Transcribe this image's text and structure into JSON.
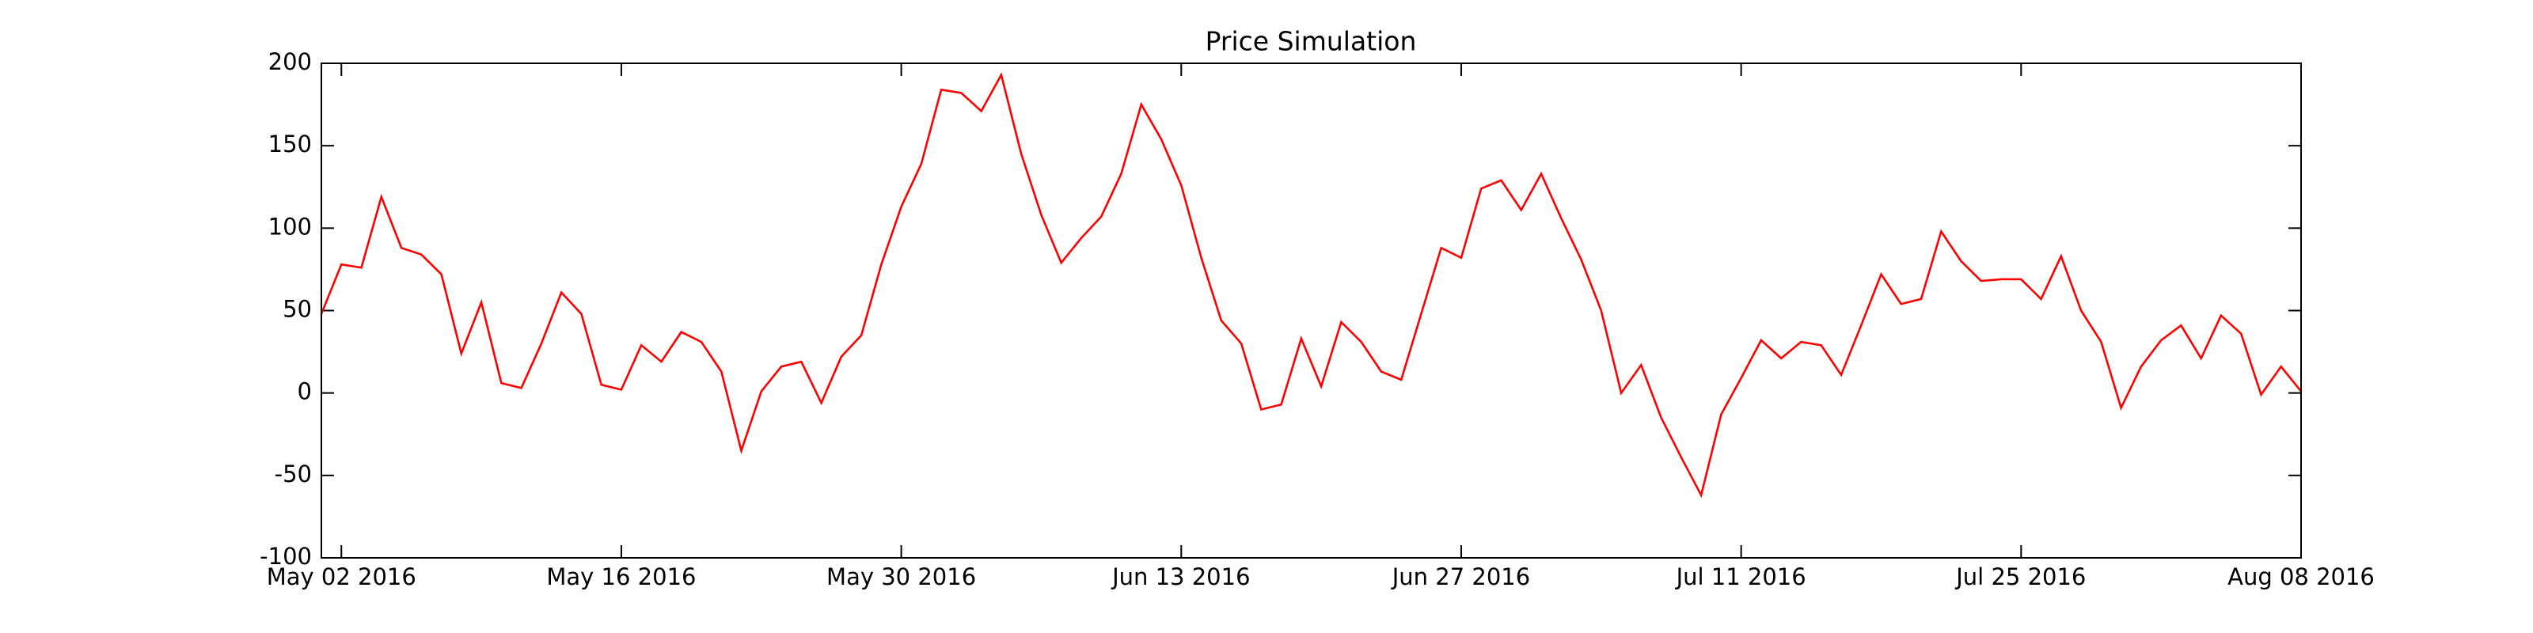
{
  "chart_data": {
    "type": "line",
    "title": "Price Simulation",
    "x": [
      "2016-05-01",
      "2016-05-02",
      "2016-05-03",
      "2016-05-04",
      "2016-05-05",
      "2016-05-06",
      "2016-05-07",
      "2016-05-08",
      "2016-05-09",
      "2016-05-10",
      "2016-05-11",
      "2016-05-12",
      "2016-05-13",
      "2016-05-14",
      "2016-05-15",
      "2016-05-16",
      "2016-05-17",
      "2016-05-18",
      "2016-05-19",
      "2016-05-20",
      "2016-05-21",
      "2016-05-22",
      "2016-05-23",
      "2016-05-24",
      "2016-05-25",
      "2016-05-26",
      "2016-05-27",
      "2016-05-28",
      "2016-05-29",
      "2016-05-30",
      "2016-05-31",
      "2016-06-01",
      "2016-06-02",
      "2016-06-03",
      "2016-06-04",
      "2016-06-05",
      "2016-06-06",
      "2016-06-07",
      "2016-06-08",
      "2016-06-09",
      "2016-06-10",
      "2016-06-11",
      "2016-06-12",
      "2016-06-13",
      "2016-06-14",
      "2016-06-15",
      "2016-06-16",
      "2016-06-17",
      "2016-06-18",
      "2016-06-19",
      "2016-06-20",
      "2016-06-21",
      "2016-06-22",
      "2016-06-23",
      "2016-06-24",
      "2016-06-25",
      "2016-06-26",
      "2016-06-27",
      "2016-06-28",
      "2016-06-29",
      "2016-06-30",
      "2016-07-01",
      "2016-07-02",
      "2016-07-03",
      "2016-07-04",
      "2016-07-05",
      "2016-07-06",
      "2016-07-07",
      "2016-07-08",
      "2016-07-09",
      "2016-07-10",
      "2016-07-11",
      "2016-07-12",
      "2016-07-13",
      "2016-07-14",
      "2016-07-15",
      "2016-07-16",
      "2016-07-17",
      "2016-07-18",
      "2016-07-19",
      "2016-07-20",
      "2016-07-21",
      "2016-07-22",
      "2016-07-23",
      "2016-07-24",
      "2016-07-25",
      "2016-07-26",
      "2016-07-27",
      "2016-07-28",
      "2016-07-29",
      "2016-07-30",
      "2016-07-31",
      "2016-08-01",
      "2016-08-02",
      "2016-08-03",
      "2016-08-04",
      "2016-08-05",
      "2016-08-06",
      "2016-08-07",
      "2016-08-08"
    ],
    "series": [
      {
        "color": "#ff0000",
        "values": [
          48,
          78,
          76,
          119,
          88,
          84,
          72,
          24,
          55,
          6,
          3,
          30,
          61,
          48,
          5,
          2,
          29,
          19,
          37,
          31,
          13,
          -35,
          1,
          16,
          19,
          -6,
          22,
          35,
          78,
          113,
          139,
          184,
          182,
          171,
          193,
          145,
          108,
          79,
          94,
          107,
          133,
          175,
          154,
          126,
          82,
          44,
          30,
          -10,
          -7,
          33,
          4,
          43,
          31,
          13,
          8,
          48,
          88,
          82,
          124,
          129,
          111,
          133,
          106,
          81,
          50,
          0,
          17,
          -15,
          -39,
          -62,
          -13,
          9,
          32,
          21,
          31,
          29,
          11,
          41,
          72,
          54,
          57,
          98,
          80,
          68,
          69,
          69,
          57,
          83,
          50,
          31,
          -9,
          16,
          32,
          41,
          21,
          47,
          36,
          -1,
          16,
          1
        ]
      }
    ],
    "xlim": [
      "2016-05-01",
      "2016-08-08"
    ],
    "xticks": [
      {
        "value": "2016-05-02",
        "label": "May 02 2016"
      },
      {
        "value": "2016-05-16",
        "label": "May 16 2016"
      },
      {
        "value": "2016-05-30",
        "label": "May 30 2016"
      },
      {
        "value": "2016-06-13",
        "label": "Jun 13 2016"
      },
      {
        "value": "2016-06-27",
        "label": "Jun 27 2016"
      },
      {
        "value": "2016-07-11",
        "label": "Jul 11 2016"
      },
      {
        "value": "2016-07-25",
        "label": "Jul 25 2016"
      },
      {
        "value": "2016-08-08",
        "label": "Aug 08 2016"
      }
    ],
    "ylim": [
      -100,
      200
    ],
    "yticks": [
      -100,
      -50,
      0,
      50,
      100,
      150,
      200
    ]
  }
}
